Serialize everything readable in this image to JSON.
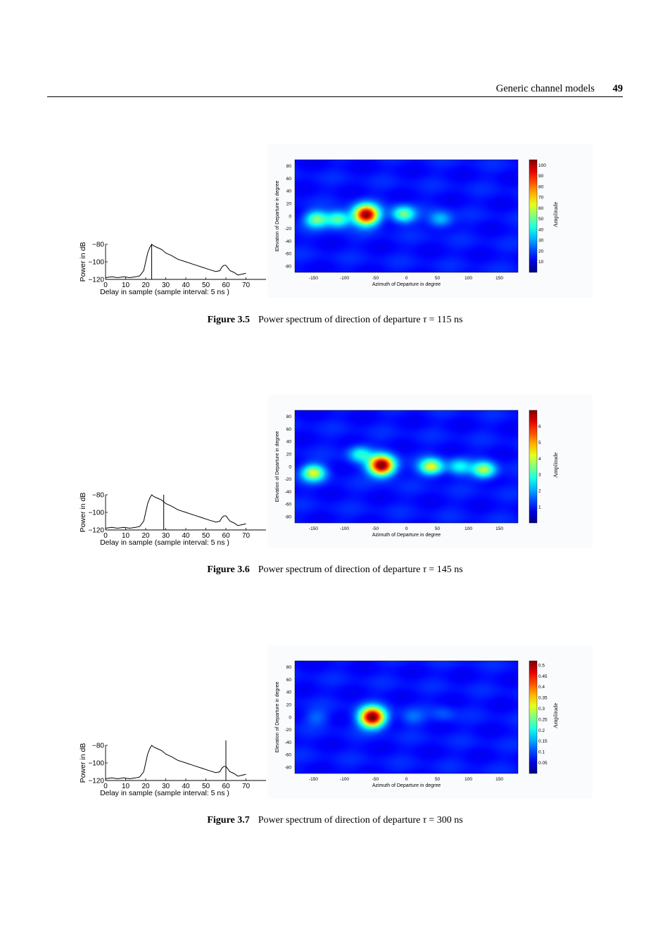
{
  "header": {
    "section": "Generic channel models",
    "page": "49"
  },
  "figures": [
    {
      "label": "Figure 3.5",
      "caption_pre": "Power spectrum of direction of departure ",
      "tau": "τ",
      "caption_post": " = 115 ns",
      "chart_data": [
        {
          "type": "line",
          "xlabel": "Delay in sample (sample interval: 5 ns )",
          "ylabel": "Power in dB",
          "xticks": [
            "0",
            "10",
            "20",
            "30",
            "40",
            "50",
            "60",
            "70"
          ],
          "yticks": [
            "−80",
            "−100",
            "−120"
          ],
          "xlim": [
            0,
            80
          ],
          "ylim": [
            -120,
            -80
          ],
          "x": [
            0,
            3,
            6,
            9,
            12,
            15,
            17,
            19,
            20,
            21,
            22,
            23,
            24,
            26,
            28,
            30,
            33,
            36,
            40,
            44,
            48,
            52,
            55,
            57,
            58,
            59,
            60,
            61,
            62,
            64,
            66,
            68,
            70
          ],
          "y": [
            -118,
            -117,
            -118,
            -117,
            -118,
            -117,
            -116,
            -110,
            -100,
            -90,
            -84,
            -80,
            -82,
            -84,
            -86,
            -90,
            -93,
            -97,
            -100,
            -103,
            -106,
            -109,
            -111,
            -110,
            -106,
            -104,
            -104,
            -107,
            -110,
            -112,
            -115,
            -114,
            -113
          ],
          "marker_x": 23
        },
        {
          "type": "heatmap",
          "xlabel": "Azimuth of Departure in degree",
          "ylabel": "Elevation of Departure in degree",
          "xticks": [
            "-150",
            "-100",
            "-50",
            "0",
            "50",
            "100",
            "150"
          ],
          "yticks": [
            "80",
            "60",
            "40",
            "20",
            "0",
            "-20",
            "-40",
            "-60",
            "-80"
          ],
          "xlim": [
            -180,
            180
          ],
          "ylim": [
            -90,
            90
          ],
          "colorbar_label": "Amplitude",
          "colorbar_ticks": [
            "100",
            "90",
            "80",
            "70",
            "60",
            "50",
            "40",
            "30",
            "20",
            "10"
          ],
          "colorbar_range": [
            0,
            105
          ],
          "peaks": [
            {
              "az": -65,
              "el": 2,
              "amp": 100
            },
            {
              "az": -145,
              "el": -5,
              "amp": 42
            },
            {
              "az": -110,
              "el": -5,
              "amp": 40
            },
            {
              "az": -5,
              "el": 3,
              "amp": 42
            },
            {
              "az": 55,
              "el": -5,
              "amp": 22
            }
          ]
        }
      ]
    },
    {
      "label": "Figure 3.6",
      "caption_pre": "Power spectrum of direction of departure ",
      "tau": "τ",
      "caption_post": " = 145 ns",
      "chart_data": [
        {
          "type": "line",
          "xlabel": "Delay in sample (sample interval: 5 ns )",
          "ylabel": "Power in dB",
          "xticks": [
            "0",
            "10",
            "20",
            "30",
            "40",
            "50",
            "60",
            "70"
          ],
          "yticks": [
            "−80",
            "−100",
            "−120"
          ],
          "xlim": [
            0,
            80
          ],
          "ylim": [
            -120,
            -80
          ],
          "x": [
            0,
            3,
            6,
            9,
            12,
            15,
            17,
            19,
            20,
            21,
            22,
            23,
            24,
            26,
            28,
            30,
            33,
            36,
            40,
            44,
            48,
            52,
            55,
            57,
            58,
            59,
            60,
            61,
            62,
            64,
            66,
            68,
            70
          ],
          "y": [
            -118,
            -117,
            -118,
            -117,
            -118,
            -117,
            -116,
            -110,
            -100,
            -90,
            -84,
            -80,
            -82,
            -84,
            -86,
            -90,
            -93,
            -97,
            -100,
            -103,
            -106,
            -109,
            -111,
            -110,
            -106,
            -104,
            -104,
            -107,
            -110,
            -112,
            -115,
            -114,
            -113
          ],
          "marker_x": 29
        },
        {
          "type": "heatmap",
          "xlabel": "Azimuth of Departure in degree",
          "ylabel": "Elevation of Departure in degree",
          "xticks": [
            "-150",
            "-100",
            "-50",
            "0",
            "50",
            "100",
            "150"
          ],
          "yticks": [
            "80",
            "60",
            "40",
            "20",
            "0",
            "-20",
            "-40",
            "-60",
            "-80"
          ],
          "xlim": [
            -180,
            180
          ],
          "ylim": [
            -90,
            90
          ],
          "colorbar_label": "Amplitude",
          "colorbar_ticks": [
            "6",
            "5",
            "4",
            "3",
            "2",
            "1"
          ],
          "colorbar_range": [
            0,
            7
          ],
          "peaks": [
            {
              "az": -40,
              "el": 2,
              "amp": 7
            },
            {
              "az": -150,
              "el": -10,
              "amp": 3.5
            },
            {
              "az": 40,
              "el": 0,
              "amp": 3.6
            },
            {
              "az": 125,
              "el": -5,
              "amp": 3.2
            },
            {
              "az": 85,
              "el": 0,
              "amp": 1.8
            },
            {
              "az": -75,
              "el": 20,
              "amp": 2.0
            }
          ]
        }
      ]
    },
    {
      "label": "Figure 3.7",
      "caption_pre": "Power spectrum of direction of departure ",
      "tau": "τ",
      "caption_post": " = 300 ns",
      "chart_data": [
        {
          "type": "line",
          "xlabel": "Delay in sample (sample interval: 5 ns )",
          "ylabel": "Power in dB",
          "xticks": [
            "0",
            "10",
            "20",
            "30",
            "40",
            "50",
            "60",
            "70"
          ],
          "yticks": [
            "−80",
            "−100",
            "−120"
          ],
          "xlim": [
            0,
            80
          ],
          "ylim": [
            -120,
            -80
          ],
          "x": [
            0,
            3,
            6,
            9,
            12,
            15,
            17,
            19,
            20,
            21,
            22,
            23,
            24,
            26,
            28,
            30,
            33,
            36,
            40,
            44,
            48,
            52,
            55,
            57,
            58,
            59,
            60,
            61,
            62,
            64,
            66,
            68,
            70
          ],
          "y": [
            -118,
            -117,
            -118,
            -117,
            -118,
            -117,
            -116,
            -110,
            -100,
            -90,
            -84,
            -80,
            -82,
            -84,
            -86,
            -90,
            -93,
            -97,
            -100,
            -103,
            -106,
            -109,
            -111,
            -110,
            -106,
            -104,
            -104,
            -107,
            -110,
            -112,
            -115,
            -114,
            -113
          ],
          "marker_x": 60
        },
        {
          "type": "heatmap",
          "xlabel": "Azimuth of Departure in degree",
          "ylabel": "Elevation of Departure in degree",
          "xticks": [
            "-150",
            "-100",
            "-50",
            "0",
            "50",
            "100",
            "150"
          ],
          "yticks": [
            "80",
            "60",
            "40",
            "20",
            "0",
            "-20",
            "-40",
            "-60",
            "-80"
          ],
          "xlim": [
            -180,
            180
          ],
          "ylim": [
            -90,
            90
          ],
          "colorbar_label": "Amplitude",
          "colorbar_ticks": [
            "0.5",
            "0.45",
            "0.4",
            "0.35",
            "0.3",
            "0.25",
            "0.2",
            "0.15",
            "0.1",
            "0.05"
          ],
          "colorbar_range": [
            0,
            0.52
          ],
          "peaks": [
            {
              "az": -55,
              "el": 0,
              "amp": 0.52
            },
            {
              "az": -145,
              "el": 0,
              "amp": 0.05
            },
            {
              "az": 10,
              "el": 0,
              "amp": 0.05
            },
            {
              "az": 60,
              "el": 5,
              "amp": 0.04
            }
          ]
        }
      ]
    }
  ]
}
